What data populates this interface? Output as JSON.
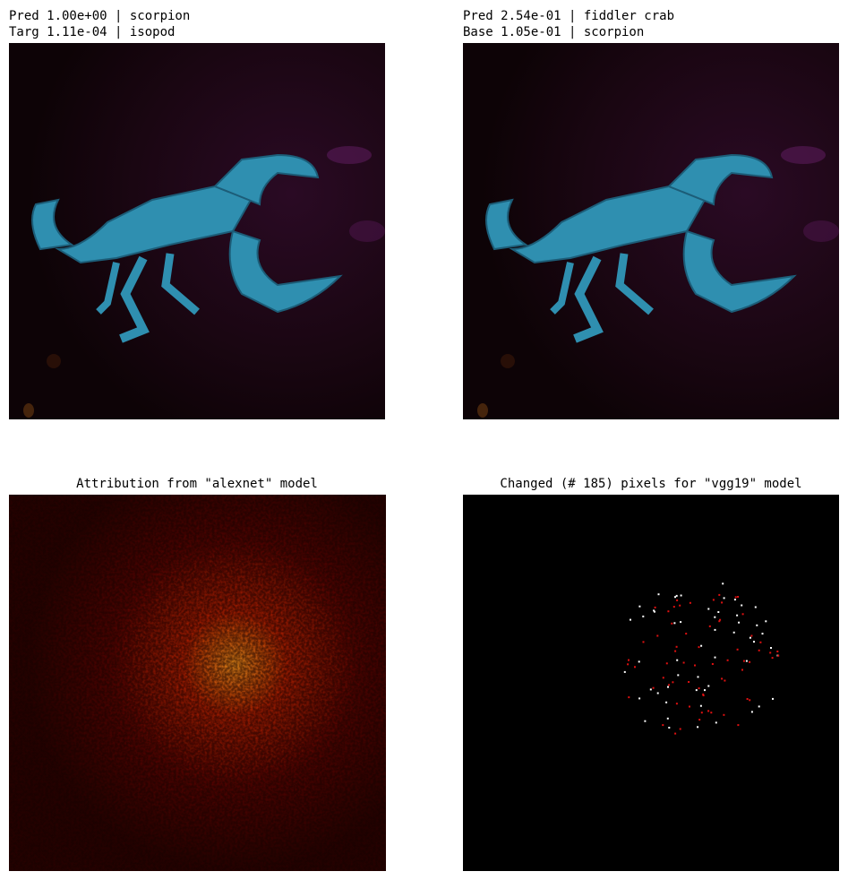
{
  "panels": [
    {
      "title_lines": [
        "Pred 1.00e+00 | scorpion",
        "Targ 1.11e-04 | isopod"
      ]
    },
    {
      "title_lines": [
        "Pred 2.54e-01 | fiddler crab",
        "Base 1.05e-01 | scorpion"
      ]
    },
    {
      "title": "Attribution from \"alexnet\" model"
    },
    {
      "title": "Changed (# 185) pixels for \"vgg19\" model"
    }
  ]
}
